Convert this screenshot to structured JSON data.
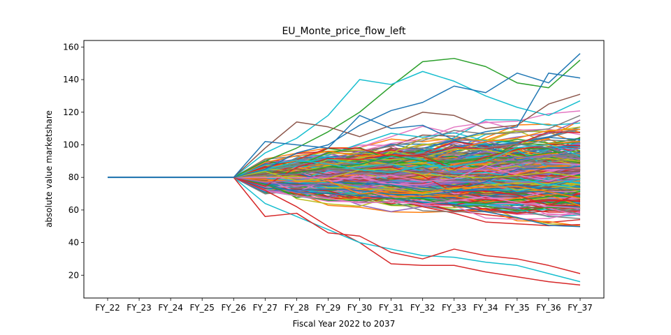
{
  "chart_data": {
    "type": "line",
    "title": "EU_Monte_price_flow_left",
    "xlabel": "Fiscal Year 2022 to 2037",
    "ylabel": "absolute value marketshare",
    "categories": [
      "FY_22",
      "FY_23",
      "FY_24",
      "FY_25",
      "FY_26",
      "FY_27",
      "FY_28",
      "FY_29",
      "FY_30",
      "FY_31",
      "FY_32",
      "FY_33",
      "FY_34",
      "FY_35",
      "FY_36",
      "FY_37"
    ],
    "ylim": [
      6,
      164
    ],
    "yticks": [
      20,
      40,
      60,
      80,
      100,
      120,
      140,
      160
    ],
    "grid": false,
    "legend": "none",
    "start_value": 80,
    "simulation_start_index": 4,
    "series_count": 500,
    "palette": [
      "#1f77b4",
      "#ff7f0e",
      "#2ca02c",
      "#d62728",
      "#9467bd",
      "#8c564b",
      "#e377c2",
      "#7f7f7f",
      "#bcbd22",
      "#17becf"
    ],
    "highlight_series": [
      {
        "color": "#2ca02c",
        "values": [
          80,
          80,
          80,
          80,
          80,
          90,
          98,
          108,
          120,
          136,
          151,
          153,
          148,
          138,
          135,
          152
        ]
      },
      {
        "color": "#17becf",
        "values": [
          80,
          80,
          80,
          80,
          80,
          95,
          104,
          118,
          140,
          137,
          145,
          139,
          130,
          123,
          118,
          127
        ]
      },
      {
        "color": "#1f77b4",
        "values": [
          80,
          80,
          80,
          80,
          80,
          85,
          95,
          100,
          112,
          121,
          126,
          136,
          132,
          144,
          138,
          156
        ]
      },
      {
        "color": "#d62728",
        "values": [
          80,
          80,
          80,
          80,
          80,
          72,
          62,
          50,
          40,
          27,
          26,
          26,
          22,
          19,
          16,
          14
        ]
      },
      {
        "color": "#17becf",
        "values": [
          80,
          80,
          80,
          80,
          80,
          64,
          56,
          48,
          40,
          36,
          32,
          31,
          28,
          26,
          21,
          16
        ]
      },
      {
        "color": "#8c564b",
        "values": [
          80,
          80,
          80,
          80,
          80,
          98,
          114,
          111,
          105,
          112,
          120,
          118,
          110,
          112,
          125,
          131
        ]
      },
      {
        "color": "#d62728",
        "values": [
          80,
          80,
          80,
          80,
          80,
          56,
          58,
          46,
          44,
          34,
          30,
          36,
          32,
          30,
          26,
          21
        ]
      },
      {
        "color": "#1f77b4",
        "values": [
          80,
          80,
          80,
          80,
          80,
          102,
          100,
          98,
          118,
          110,
          112,
          103,
          108,
          111,
          144,
          141
        ]
      }
    ]
  }
}
